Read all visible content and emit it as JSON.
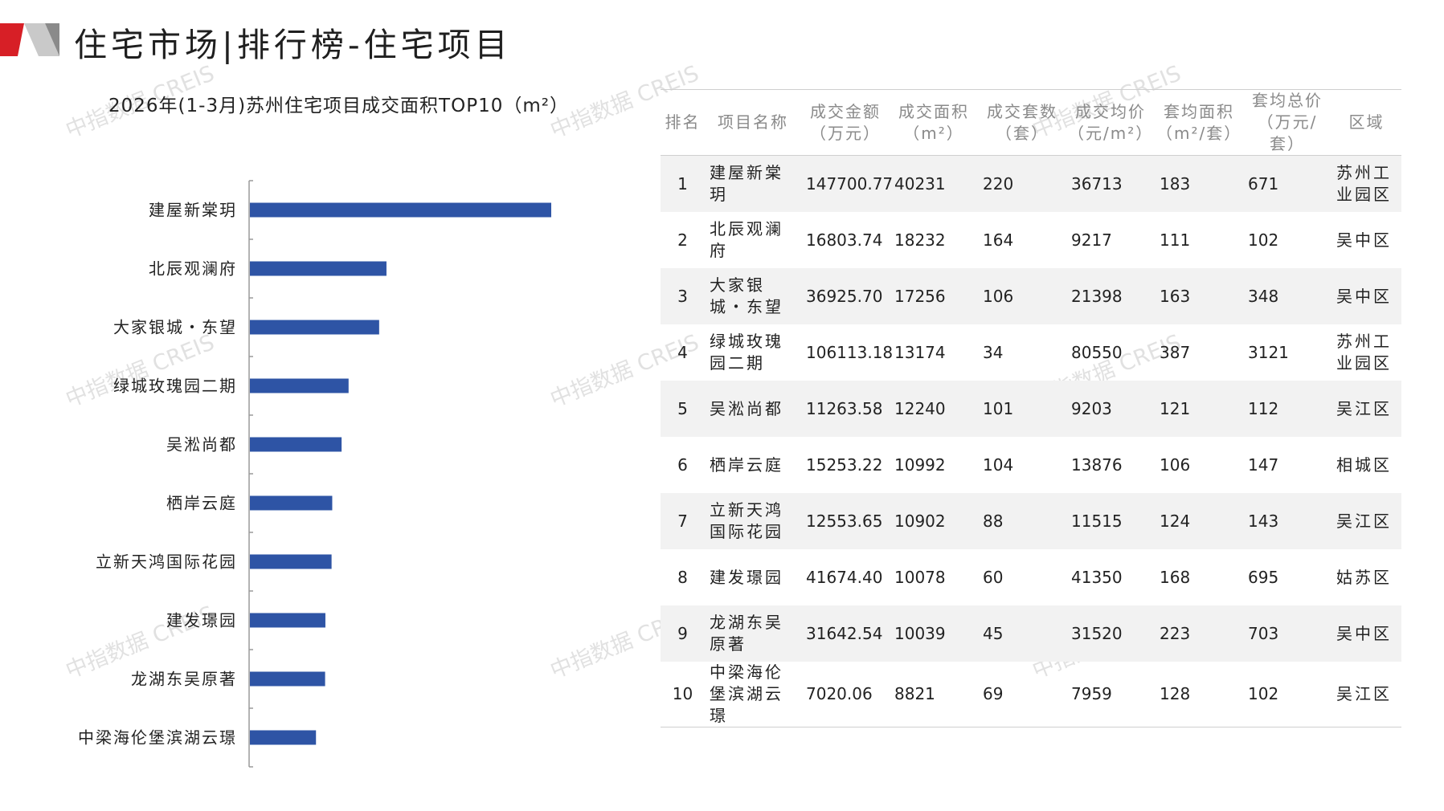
{
  "header": {
    "title": "住宅市场|排行榜-住宅项目"
  },
  "watermark": "中指数据 CREIS",
  "colors": {
    "bar": "#2e54a5",
    "brand_red": "#d71f26",
    "brand_grey": "#c9c9c9"
  },
  "chart_data": {
    "type": "bar",
    "orientation": "horizontal",
    "title": "2026年(1-3月)苏州住宅项目成交面积TOP10（m²）",
    "categories": [
      "建屋新棠玥",
      "北辰观澜府",
      "大家银城・东望",
      "绿城玫瑰园二期",
      "吴淞尚都",
      "栖岸云庭",
      "立新天鸿国际花园",
      "建发璟园",
      "龙湖东吴原著",
      "中梁海伦堡滨湖云璟"
    ],
    "values": [
      40231,
      18232,
      17256,
      13174,
      12240,
      10992,
      10902,
      10078,
      10039,
      8821
    ],
    "grid": false,
    "legend": "none"
  },
  "table": {
    "headers": [
      [
        "排名"
      ],
      [
        "项目名称"
      ],
      [
        "成交金额",
        "（万元）"
      ],
      [
        "成交面积",
        "（m²）"
      ],
      [
        "成交套数",
        "（套）"
      ],
      [
        "成交均价",
        "（元/m²）"
      ],
      [
        "套均面积",
        "（m²/套）"
      ],
      [
        "套均总价",
        "（万元/套）"
      ],
      [
        "区域"
      ]
    ],
    "rows": [
      [
        "1",
        "建屋新棠玥",
        "147700.77",
        "40231",
        "220",
        "36713",
        "183",
        "671",
        "苏州工业园区"
      ],
      [
        "2",
        "北辰观澜府",
        "16803.74",
        "18232",
        "164",
        "9217",
        "111",
        "102",
        "吴中区"
      ],
      [
        "3",
        "大家银城・东望",
        "36925.70",
        "17256",
        "106",
        "21398",
        "163",
        "348",
        "吴中区"
      ],
      [
        "4",
        "绿城玫瑰园二期",
        "106113.18",
        "13174",
        "34",
        "80550",
        "387",
        "3121",
        "苏州工业园区"
      ],
      [
        "5",
        "吴淞尚都",
        "11263.58",
        "12240",
        "101",
        "9203",
        "121",
        "112",
        "吴江区"
      ],
      [
        "6",
        "栖岸云庭",
        "15253.22",
        "10992",
        "104",
        "13876",
        "106",
        "147",
        "相城区"
      ],
      [
        "7",
        "立新天鸿国际花园",
        "12553.65",
        "10902",
        "88",
        "11515",
        "124",
        "143",
        "吴江区"
      ],
      [
        "8",
        "建发璟园",
        "41674.40",
        "10078",
        "60",
        "41350",
        "168",
        "695",
        "姑苏区"
      ],
      [
        "9",
        "龙湖东吴原著",
        "31642.54",
        "10039",
        "45",
        "31520",
        "223",
        "703",
        "吴中区"
      ],
      [
        "10",
        "中梁海伦堡滨湖云璟",
        "7020.06",
        "8821",
        "69",
        "7959",
        "128",
        "102",
        "吴江区"
      ]
    ]
  }
}
